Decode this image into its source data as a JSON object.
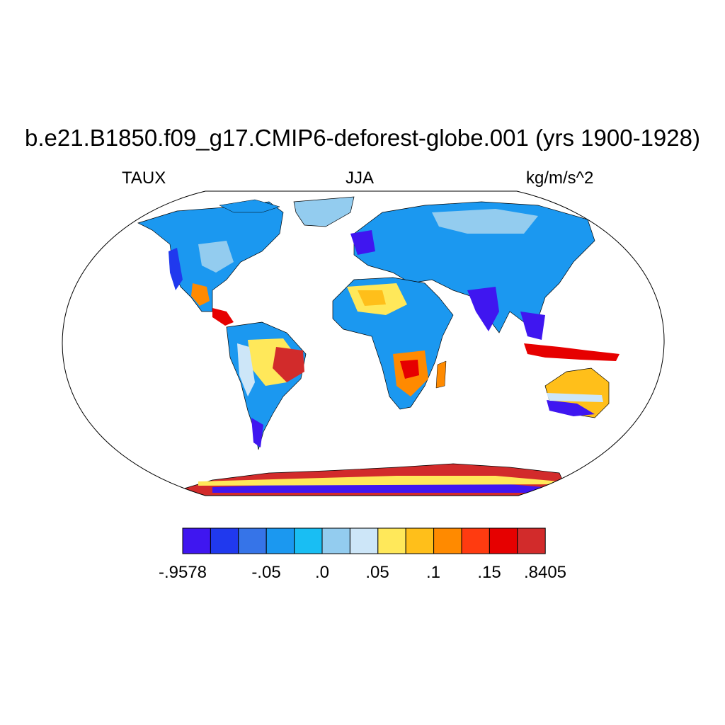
{
  "title": "b.e21.B1850.f09_g17.CMIP6-deforest-globe.001 (yrs 1900-1928)",
  "subtitle_left": "TAUX",
  "subtitle_center": "JJA",
  "subtitle_right": "kg/m/s^2",
  "colorbar": {
    "colors": [
      "#3f16f0",
      "#2039ee",
      "#3674e8",
      "#1b98f0",
      "#19bef3",
      "#93ccef",
      "#cde6f8",
      "#ffe85a",
      "#ffbf1a",
      "#ff8a00",
      "#ff3b10",
      "#e60000",
      "#d22b2b"
    ],
    "labels": [
      "-.9578",
      "-.05",
      ".0",
      ".05",
      ".1",
      ".15",
      ".8405"
    ]
  }
}
